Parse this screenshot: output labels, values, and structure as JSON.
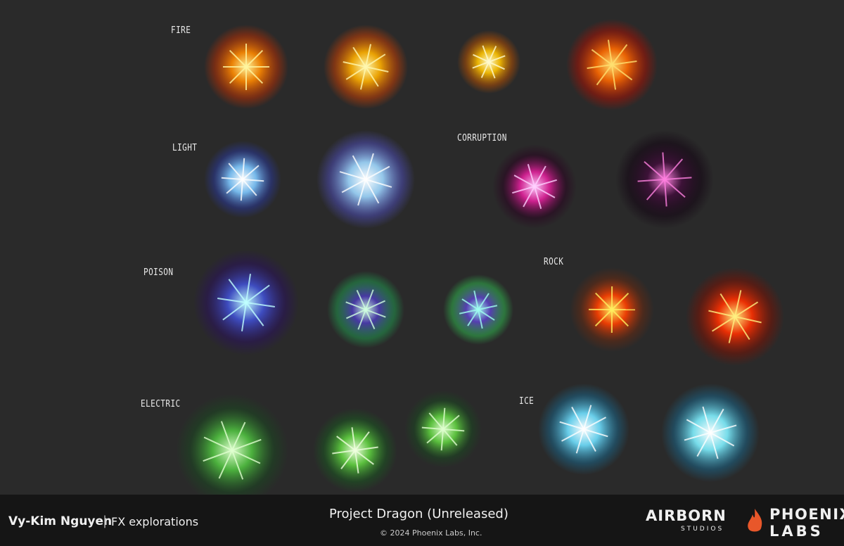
{
  "labels": [
    "FIRE",
    "LIGHT",
    "CORRUPTION",
    "POISON",
    "ROCK",
    "ELECTRIC",
    "ICE"
  ],
  "footer": {
    "artist": "Vy-Kim Nguyen",
    "separator": "|",
    "subtitle": "FX explorations",
    "project": "Project Dragon (Unreleased)",
    "copyright": "© 2024 Phoenix Labs, Inc.",
    "logo1": {
      "name": "AIRBORN",
      "sub": "STUDIOS"
    },
    "logo2": {
      "name": "PHOENIX",
      "sub": "LABS"
    }
  }
}
